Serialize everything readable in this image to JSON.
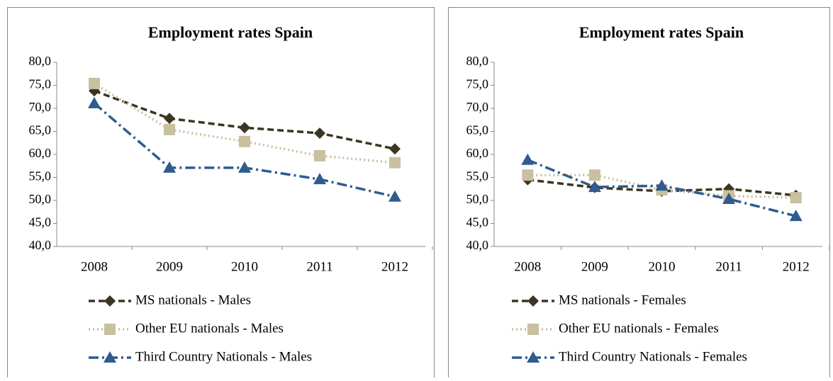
{
  "chart_data": [
    {
      "type": "line",
      "title": "Employment rates Spain",
      "categories": [
        "2008",
        "2009",
        "2010",
        "2011",
        "2012"
      ],
      "ylim": [
        40,
        80
      ],
      "yticks": [
        {
          "value": 40,
          "label": "40,0"
        },
        {
          "value": 45,
          "label": "45,0"
        },
        {
          "value": 50,
          "label": "50,0"
        },
        {
          "value": 55,
          "label": "55,0"
        },
        {
          "value": 60,
          "label": "60,0"
        },
        {
          "value": 65,
          "label": "65,0"
        },
        {
          "value": 70,
          "label": "70,0"
        },
        {
          "value": 75,
          "label": "75,0"
        },
        {
          "value": 80,
          "label": "80,0"
        }
      ],
      "grid": false,
      "legend": "bottom",
      "series": [
        {
          "name": "MS nationals - Males",
          "color": "#3d3522",
          "marker": "diamond",
          "line_style": "dashed",
          "values": [
            73.8,
            67.8,
            65.8,
            64.6,
            61.2
          ]
        },
        {
          "name": "Other EU nationals - Males",
          "color": "#c9c0a0",
          "marker": "square",
          "line_style": "dotted",
          "values": [
            75.4,
            65.4,
            62.8,
            59.7,
            58.2
          ]
        },
        {
          "name": "Third Country Nationals - Males",
          "color": "#2f5b8f",
          "marker": "triangle",
          "line_style": "dashdot",
          "values": [
            71.1,
            57.1,
            57.1,
            54.6,
            50.8
          ]
        }
      ]
    },
    {
      "type": "line",
      "title": "Employment rates Spain",
      "categories": [
        "2008",
        "2009",
        "2010",
        "2011",
        "2012"
      ],
      "ylim": [
        40,
        80
      ],
      "yticks": [
        {
          "value": 40,
          "label": "40,0"
        },
        {
          "value": 45,
          "label": "45,0"
        },
        {
          "value": 50,
          "label": "50,0"
        },
        {
          "value": 55,
          "label": "55,0"
        },
        {
          "value": 60,
          "label": "60,0"
        },
        {
          "value": 65,
          "label": "65,0"
        },
        {
          "value": 70,
          "label": "70,0"
        },
        {
          "value": 75,
          "label": "75,0"
        },
        {
          "value": 80,
          "label": "80,0"
        }
      ],
      "grid": false,
      "legend": "bottom",
      "series": [
        {
          "name": "MS nationals - Females",
          "color": "#3d3522",
          "marker": "diamond",
          "line_style": "dashed",
          "values": [
            54.5,
            52.8,
            52.0,
            52.5,
            51.1
          ]
        },
        {
          "name": "Other EU nationals - Females",
          "color": "#c9c0a0",
          "marker": "square",
          "line_style": "dotted",
          "values": [
            55.5,
            55.5,
            52.3,
            51.0,
            50.6
          ]
        },
        {
          "name": "Third Country Nationals - Females",
          "color": "#2f5b8f",
          "marker": "triangle",
          "line_style": "dashdot",
          "values": [
            58.8,
            52.9,
            53.2,
            50.3,
            46.6
          ]
        }
      ]
    }
  ]
}
